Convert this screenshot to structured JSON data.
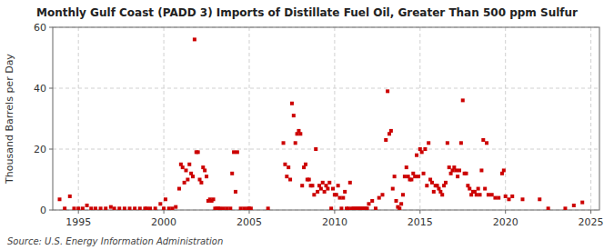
{
  "chart_data": {
    "type": "scatter",
    "title": "Monthly Gulf Coast (PADD 3) Imports of Distillate Fuel Oil, Greater Than 500 ppm Sulfur",
    "ylabel": "Thousand Barrels per Day",
    "annotations": [
      "Source: U.S. Energy Information Administration"
    ],
    "color": "#cc0000",
    "marker": "square",
    "grid": true,
    "xlim": [
      1993.5,
      2025.5
    ],
    "xticks": [
      1995,
      2000,
      2005,
      2010,
      2015,
      2020,
      2025
    ],
    "ylim": [
      0,
      60
    ],
    "yticks": [
      0,
      20,
      40,
      60
    ],
    "x": [
      1993.9,
      1994.2,
      1994.5,
      1994.75,
      1995.0,
      1995.25,
      1995.5,
      1995.75,
      1996.0,
      1996.3,
      1996.6,
      1996.9,
      1997.1,
      1997.4,
      1997.7,
      1998.0,
      1998.3,
      1998.6,
      1998.9,
      1999.0,
      1999.2,
      1999.5,
      1999.8,
      2000.0,
      2000.1,
      2000.3,
      2000.5,
      2000.7,
      2000.9,
      2001.0,
      2001.1,
      2001.2,
      2001.3,
      2001.4,
      2001.5,
      2001.6,
      2001.7,
      2001.8,
      2001.9,
      2002.0,
      2002.1,
      2002.2,
      2002.3,
      2002.4,
      2002.5,
      2002.6,
      2002.7,
      2002.8,
      2002.9,
      2003.0,
      2003.1,
      2003.2,
      2003.3,
      2003.5,
      2003.7,
      2003.9,
      2004.0,
      2004.1,
      2004.2,
      2004.3,
      2004.5,
      2004.7,
      2004.9,
      2005.0,
      2005.1,
      2006.1,
      2007.0,
      2007.1,
      2007.2,
      2007.3,
      2007.4,
      2007.5,
      2007.6,
      2007.7,
      2007.8,
      2007.9,
      2008.0,
      2008.1,
      2008.2,
      2008.3,
      2008.4,
      2008.5,
      2008.6,
      2008.7,
      2008.8,
      2008.9,
      2009.0,
      2009.1,
      2009.2,
      2009.3,
      2009.4,
      2009.5,
      2009.6,
      2009.7,
      2009.8,
      2009.9,
      2010.0,
      2010.1,
      2010.2,
      2010.3,
      2010.4,
      2010.5,
      2010.6,
      2010.7,
      2010.8,
      2010.9,
      2011.0,
      2011.1,
      2011.2,
      2011.3,
      2011.4,
      2011.5,
      2011.6,
      2011.7,
      2011.8,
      2011.9,
      2012.0,
      2012.2,
      2012.4,
      2012.6,
      2012.8,
      2013.0,
      2013.1,
      2013.2,
      2013.3,
      2013.4,
      2013.5,
      2013.6,
      2013.7,
      2013.8,
      2013.9,
      2014.0,
      2014.1,
      2014.2,
      2014.3,
      2014.4,
      2014.5,
      2014.6,
      2014.7,
      2014.8,
      2014.9,
      2015.0,
      2015.1,
      2015.2,
      2015.3,
      2015.4,
      2015.5,
      2015.6,
      2015.7,
      2015.8,
      2015.9,
      2016.0,
      2016.1,
      2016.2,
      2016.3,
      2016.4,
      2016.5,
      2016.6,
      2016.7,
      2016.8,
      2016.9,
      2017.0,
      2017.1,
      2017.2,
      2017.3,
      2017.4,
      2017.5,
      2017.6,
      2017.7,
      2017.8,
      2017.9,
      2018.0,
      2018.1,
      2018.2,
      2018.3,
      2018.4,
      2018.5,
      2018.6,
      2018.7,
      2018.8,
      2018.9,
      2019.0,
      2019.2,
      2019.4,
      2019.6,
      2019.8,
      2019.9,
      2020.0,
      2020.2,
      2020.4,
      2021.0,
      2022.0,
      2022.5,
      2023.5,
      2024.0,
      2024.5
    ],
    "values": [
      3.5,
      0.5,
      4.5,
      0.5,
      0.5,
      0.5,
      1.5,
      0.5,
      0.5,
      0.5,
      0.5,
      1.0,
      0.5,
      0.5,
      0.5,
      0.5,
      0.5,
      0.5,
      0.5,
      0.5,
      0.5,
      0.5,
      2.0,
      0.5,
      3.5,
      0.5,
      0.5,
      1.0,
      7.0,
      15.0,
      14.0,
      9.0,
      13.0,
      10.0,
      15.0,
      12.0,
      11.0,
      56.0,
      19.0,
      19.0,
      10.0,
      9.0,
      14.0,
      13.0,
      11.0,
      3.0,
      3.5,
      3.0,
      3.5,
      0.5,
      0.5,
      0.5,
      0.5,
      0.5,
      0.5,
      0.5,
      12.0,
      19.0,
      6.0,
      19.0,
      0.5,
      0.5,
      0.5,
      0.5,
      0.5,
      0.5,
      22.0,
      15.0,
      11.0,
      14.0,
      10.0,
      35.0,
      31.0,
      22.0,
      25.0,
      26.0,
      25.0,
      8.0,
      14.0,
      15.0,
      10.0,
      10.0,
      8.0,
      8.0,
      5.0,
      20.0,
      6.0,
      8.0,
      7.0,
      9.0,
      6.0,
      8.0,
      7.0,
      9.0,
      0.5,
      7.0,
      5.0,
      5.0,
      8.0,
      4.0,
      0.5,
      4.0,
      6.0,
      0.5,
      0.5,
      9.0,
      0.5,
      0.5,
      0.5,
      0.5,
      0.5,
      0.5,
      0.5,
      0.5,
      0.5,
      0.5,
      2.0,
      3.0,
      0.5,
      4.0,
      5.0,
      23.0,
      39.0,
      25.0,
      26.0,
      7.0,
      11.0,
      3.0,
      1.0,
      0.5,
      2.0,
      5.0,
      11.0,
      14.0,
      11.0,
      10.0,
      10.0,
      12.0,
      11.0,
      18.0,
      11.0,
      20.0,
      19.0,
      12.0,
      20.0,
      8.0,
      22.0,
      10.0,
      9.0,
      6.0,
      8.0,
      8.0,
      7.0,
      6.0,
      5.0,
      8.0,
      9.0,
      22.0,
      14.0,
      12.0,
      13.0,
      14.0,
      13.0,
      11.0,
      13.0,
      22.0,
      36.0,
      12.0,
      12.0,
      8.0,
      7.0,
      5.0,
      6.0,
      6.0,
      5.0,
      7.0,
      5.0,
      13.0,
      23.0,
      7.0,
      22.0,
      5.0,
      5.0,
      4.0,
      4.0,
      12.0,
      13.0,
      4.5,
      3.5,
      4.5,
      3.5,
      3.5,
      0.5,
      0.5,
      1.5,
      2.5
    ]
  }
}
